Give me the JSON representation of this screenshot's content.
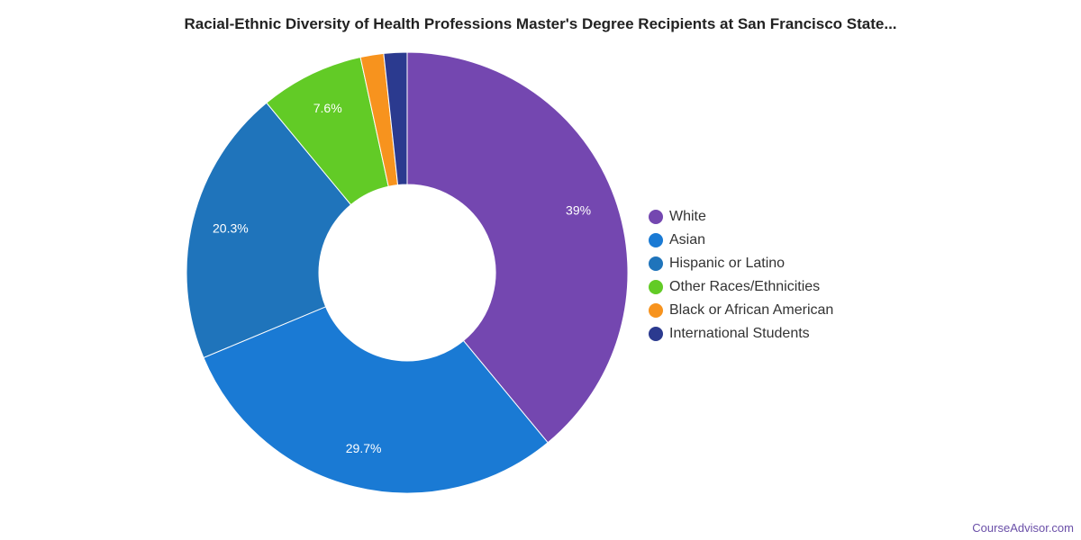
{
  "chart_data": {
    "type": "pie",
    "title": "Racial-Ethnic Diversity of Health Professions Master's Degree Recipients at San Francisco State...",
    "donut": true,
    "legend_position": "right",
    "series": [
      {
        "name": "White",
        "value": 39.0,
        "label": "39%",
        "color": "#7447b0"
      },
      {
        "name": "Asian",
        "value": 29.7,
        "label": "29.7%",
        "color": "#1a7ad4"
      },
      {
        "name": "Hispanic or Latino",
        "value": 20.3,
        "label": "20.3%",
        "color": "#1f74bb"
      },
      {
        "name": "Other Races/Ethnicities",
        "value": 7.6,
        "label": "7.6%",
        "color": "#62cb26"
      },
      {
        "name": "Black or African American",
        "value": 1.7,
        "label": "",
        "color": "#f7931e"
      },
      {
        "name": "International Students",
        "value": 1.7,
        "label": "",
        "color": "#2b3a8f"
      }
    ]
  },
  "watermark": "CourseAdvisor.com"
}
